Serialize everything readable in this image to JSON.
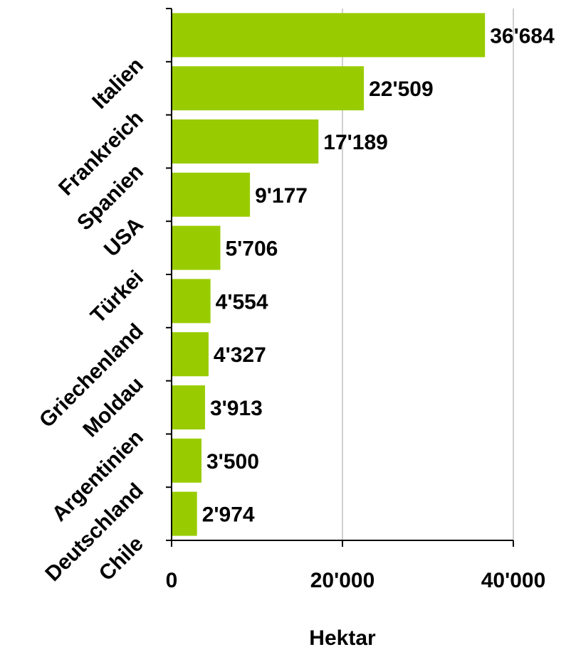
{
  "chart_data": {
    "type": "bar",
    "orientation": "horizontal",
    "categories": [
      "Italien",
      "Frankreich",
      "Spanien",
      "USA",
      "Türkei",
      "Griechenland",
      "Moldau",
      "Argentinien",
      "Deutschland",
      "Chile"
    ],
    "values": [
      36684,
      22509,
      17189,
      9177,
      5706,
      4554,
      4327,
      3913,
      3500,
      2974
    ],
    "value_labels": [
      "36'684",
      "22'509",
      "17'189",
      "9'177",
      "5'706",
      "4'554",
      "4'327",
      "3'913",
      "3'500",
      "2'974"
    ],
    "xlabel": "Hektar",
    "xlim": [
      0,
      40000
    ],
    "x_ticks": [
      0,
      20000,
      40000
    ],
    "x_tick_labels": [
      "0",
      "20'000",
      "40'000"
    ],
    "grid": "vertical",
    "legend": "none",
    "colors": {
      "bar": "#99cc00",
      "grid": "#c0c0c0",
      "axis": "#000000",
      "text": "#000000"
    }
  }
}
